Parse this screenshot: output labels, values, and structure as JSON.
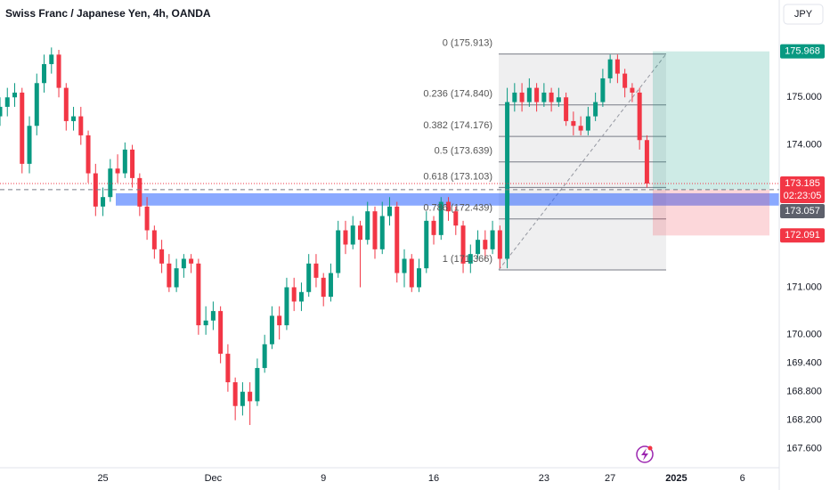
{
  "chart_data": {
    "type": "candlestick",
    "title": "Swiss Franc / Japanese Yen, 4h, OANDA",
    "currency": "JPY",
    "up_color": "#089981",
    "down_color": "#f23645",
    "x": [
      0,
      2,
      4,
      6,
      8,
      10,
      12,
      14,
      16,
      18,
      20,
      22,
      24,
      26,
      28,
      30,
      32,
      34,
      36,
      38,
      40,
      42,
      44,
      46,
      48,
      50,
      52,
      54,
      56,
      58,
      60,
      62,
      64,
      66,
      68,
      70,
      72,
      74,
      76,
      78,
      80,
      82,
      84,
      86,
      88,
      90,
      92,
      94,
      96,
      98,
      100,
      102,
      104,
      106,
      108,
      110,
      112,
      114,
      116,
      118,
      120,
      122,
      124,
      126,
      128,
      130,
      132,
      134,
      136,
      138,
      140,
      142,
      144,
      146,
      148,
      150,
      152,
      154,
      156,
      158,
      160,
      162,
      164,
      166,
      168,
      170,
      172,
      174,
      176
    ],
    "open": [
      174.6,
      174.8,
      175.0,
      175.1,
      173.6,
      174.4,
      175.3,
      175.7,
      175.9,
      175.2,
      174.5,
      174.6,
      174.2,
      173.4,
      172.7,
      172.9,
      173.5,
      173.4,
      173.9,
      173.3,
      172.7,
      172.2,
      171.8,
      171.5,
      171.0,
      171.4,
      171.6,
      171.5,
      170.2,
      170.3,
      170.5,
      169.6,
      169.0,
      168.5,
      168.8,
      168.6,
      169.3,
      169.8,
      170.4,
      170.2,
      171.0,
      170.7,
      170.9,
      171.5,
      171.2,
      170.8,
      171.3,
      172.2,
      171.9,
      172.3,
      172.0,
      172.6,
      171.8,
      172.5,
      172.7,
      171.3,
      171.6,
      171.0,
      171.4,
      172.4,
      172.1,
      172.8,
      172.6,
      172.3,
      171.5,
      171.7,
      172.0,
      171.8,
      172.2,
      171.6,
      174.9,
      175.1,
      174.9,
      175.2,
      174.9,
      175.1,
      174.9,
      175.0,
      174.5,
      174.4,
      174.3,
      174.6,
      174.9,
      175.4,
      175.8,
      175.5,
      175.2,
      175.1,
      174.1
    ],
    "high": [
      175.0,
      175.2,
      175.3,
      175.2,
      174.6,
      175.5,
      175.9,
      176.05,
      176.0,
      175.3,
      174.8,
      174.8,
      174.3,
      173.6,
      173.1,
      173.7,
      173.8,
      174.05,
      174.0,
      173.4,
      172.9,
      172.3,
      172.0,
      171.7,
      171.6,
      171.7,
      171.7,
      171.6,
      170.6,
      170.7,
      170.6,
      169.8,
      169.1,
      169.0,
      169.0,
      169.5,
      170.0,
      170.6,
      170.6,
      171.2,
      171.2,
      171.1,
      171.7,
      171.7,
      171.3,
      171.5,
      172.4,
      172.4,
      172.5,
      172.4,
      172.8,
      172.7,
      172.8,
      172.9,
      172.8,
      171.8,
      171.7,
      171.6,
      172.6,
      172.5,
      172.9,
      172.9,
      172.7,
      172.4,
      171.9,
      172.2,
      172.2,
      172.4,
      172.3,
      175.2,
      175.3,
      175.3,
      175.4,
      175.3,
      175.3,
      175.2,
      175.2,
      175.1,
      174.7,
      174.6,
      174.8,
      175.1,
      175.6,
      175.9,
      175.9,
      175.6,
      175.3,
      175.2,
      174.2
    ],
    "low": [
      174.4,
      174.6,
      174.8,
      173.4,
      173.4,
      174.2,
      175.1,
      175.5,
      175.0,
      174.3,
      174.3,
      174.0,
      173.2,
      172.5,
      172.5,
      172.8,
      173.2,
      173.3,
      173.1,
      172.5,
      172.0,
      171.6,
      171.3,
      170.9,
      170.9,
      171.2,
      171.3,
      170.0,
      170.0,
      170.1,
      169.4,
      168.8,
      168.2,
      168.3,
      168.1,
      168.5,
      169.2,
      169.7,
      169.9,
      170.1,
      170.5,
      170.5,
      170.8,
      171.0,
      170.6,
      170.7,
      171.2,
      171.7,
      171.8,
      171.0,
      171.9,
      171.6,
      171.7,
      172.3,
      171.1,
      171.0,
      170.9,
      170.9,
      171.3,
      171.9,
      172.0,
      172.4,
      172.1,
      171.3,
      171.3,
      171.6,
      171.6,
      171.7,
      171.4,
      171.4,
      174.7,
      174.7,
      174.8,
      174.7,
      174.8,
      174.7,
      174.8,
      174.4,
      174.2,
      174.2,
      174.2,
      174.5,
      174.8,
      175.3,
      175.3,
      175.0,
      174.9,
      173.9,
      173.1
    ],
    "close": [
      174.8,
      175.0,
      175.1,
      173.6,
      174.4,
      175.3,
      175.7,
      175.9,
      175.2,
      174.5,
      174.6,
      174.2,
      173.4,
      172.7,
      172.9,
      173.5,
      173.4,
      173.9,
      173.3,
      172.7,
      172.2,
      171.8,
      171.5,
      171.0,
      171.4,
      171.6,
      171.5,
      170.2,
      170.3,
      170.5,
      169.6,
      169.0,
      168.5,
      168.8,
      168.6,
      169.3,
      169.8,
      170.4,
      170.2,
      171.0,
      170.7,
      170.9,
      171.5,
      171.2,
      170.8,
      171.3,
      172.2,
      171.9,
      172.3,
      172.0,
      172.6,
      171.8,
      172.5,
      172.7,
      171.3,
      171.6,
      171.0,
      171.4,
      172.4,
      172.1,
      172.8,
      172.6,
      172.3,
      171.5,
      171.7,
      172.0,
      171.8,
      172.2,
      171.6,
      174.9,
      175.1,
      174.9,
      175.2,
      174.9,
      175.1,
      174.9,
      175.0,
      174.5,
      174.4,
      174.3,
      174.6,
      174.9,
      175.4,
      175.8,
      175.5,
      175.2,
      175.1,
      174.1,
      173.185
    ],
    "xlim": [
      0,
      212
    ],
    "xticks": [
      {
        "value": 28,
        "label": "25"
      },
      {
        "value": 58,
        "label": "Dec"
      },
      {
        "value": 88,
        "label": "9"
      },
      {
        "value": 118,
        "label": "16"
      },
      {
        "value": 148,
        "label": "23"
      },
      {
        "value": 166,
        "label": "27"
      },
      {
        "value": 184,
        "label": "2025"
      },
      {
        "value": 202,
        "label": "6"
      }
    ],
    "ylim": [
      167.2,
      177.05
    ],
    "yticks": [
      {
        "value": 167.6,
        "label": "167.600"
      },
      {
        "value": 168.2,
        "label": "168.200"
      },
      {
        "value": 168.8,
        "label": "168.800"
      },
      {
        "value": 169.4,
        "label": "169.400"
      },
      {
        "value": 170,
        "label": "170.000"
      },
      {
        "value": 171,
        "label": "171.000"
      },
      {
        "value": 174,
        "label": "174.000"
      },
      {
        "value": 175,
        "label": "175.000"
      }
    ],
    "grid": true,
    "fib_levels": [
      {
        "label": "0 (175.913)",
        "value": 175.913
      },
      {
        "label": "0.236 (174.840)",
        "value": 174.84
      },
      {
        "label": "0.382 (174.176)",
        "value": 174.176
      },
      {
        "label": "0.5 (173.639)",
        "value": 173.639
      },
      {
        "label": "0.618 (173.103)",
        "value": 173.103
      },
      {
        "label": "0.786 (172.439)",
        "value": 172.439
      },
      {
        "label": "1 (171.366)",
        "value": 171.366
      }
    ],
    "zone": [
      172.72,
      172.98
    ],
    "position": {
      "target": 175.968,
      "entry": 173.057,
      "stop": 172.091
    },
    "last_price": 173.185,
    "countdown": "02:23:05"
  }
}
